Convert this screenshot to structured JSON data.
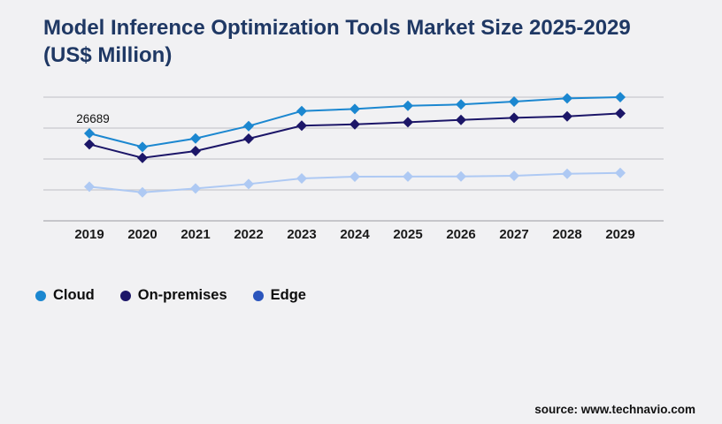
{
  "title_lines": [
    "Model Inference Optimization Tools Market Size 2025-2029",
    "(US$ Million)"
  ],
  "source_text": "source: www.technavio.com",
  "colors": {
    "background": "#f1f1f3",
    "title": "#1f3864",
    "gridline": "#c9c9ce",
    "axis_line": "#b7b7bd",
    "tick_label": "#1a1a1a",
    "annotation": "#111111"
  },
  "chart_data": {
    "type": "line",
    "title": "Model Inference Optimization Tools Market Size 2025-2029 (US$ Million)",
    "categories": [
      "2019",
      "2020",
      "2021",
      "2022",
      "2023",
      "2024",
      "2025",
      "2026",
      "2027",
      "2028",
      "2029"
    ],
    "series": [
      {
        "name": "Cloud",
        "color": "#1b87d0",
        "line_color": "#1b87d0",
        "values": [
          26689,
          22560,
          25150,
          28930,
          33510,
          34160,
          35130,
          35510,
          36400,
          37390,
          37740
        ]
      },
      {
        "name": "On-premises",
        "color": "#1c1668",
        "line_color": "#1c1668",
        "values": [
          23370,
          19220,
          21300,
          25070,
          29040,
          29470,
          30110,
          30820,
          31460,
          31890,
          32810
        ]
      },
      {
        "name": "Edge",
        "color": "#2b55bd",
        "line_color": "#aec9f3",
        "values": [
          10430,
          8710,
          9890,
          11240,
          12950,
          13480,
          13500,
          13550,
          13750,
          14370,
          14640
        ]
      }
    ],
    "xlabel": "",
    "ylabel": "",
    "ylim": [
      0,
      37750
    ],
    "gridline_count": 5,
    "grid": "horizontal",
    "marker": "diamond",
    "legend_position": "bottom-left",
    "annotations": [
      {
        "series": "Cloud",
        "category": "2019",
        "text": "26689"
      }
    ]
  }
}
